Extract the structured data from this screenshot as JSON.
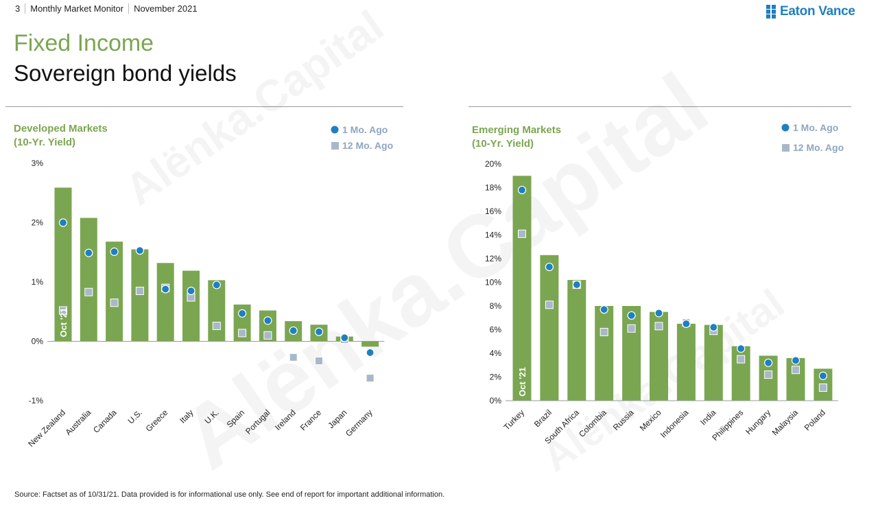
{
  "header": {
    "page_number": "3",
    "report_name": "Monthly Market Monitor",
    "date": "November 2021",
    "brand": "Eaton Vance"
  },
  "section": {
    "title": "Fixed Income",
    "subtitle": "Sovereign bond yields"
  },
  "watermark": "Alënka.Capital",
  "source": "Source: Factset as of 10/31/21. Data provided is for informational use only. See end of report for important additional information.",
  "colors": {
    "bar": "#7ba651",
    "one_month_marker": "#1f7fc0",
    "twelve_month_marker": "#a9b8c8",
    "legend_text": "#8fa6bf",
    "chart_title": "#7ba651"
  },
  "chart_data": [
    {
      "type": "bar",
      "title": "Developed Markets",
      "subtitle": "(10-Yr. Yield)",
      "categories": [
        "New Zealand",
        "Australia",
        "Canada",
        "U.S.",
        "Greece",
        "Italy",
        "U.K.",
        "Spain",
        "Portugal",
        "Ireland",
        "France",
        "Japan",
        "Germany"
      ],
      "series": [
        {
          "name": "Oct '21",
          "marker": "bar",
          "values": [
            2.59,
            2.08,
            1.68,
            1.55,
            1.32,
            1.19,
            1.03,
            0.62,
            0.52,
            0.34,
            0.28,
            0.08,
            -0.09
          ]
        },
        {
          "name": "1 Mo. Ago",
          "marker": "circle",
          "values": [
            2.0,
            1.49,
            1.51,
            1.53,
            0.88,
            0.85,
            0.95,
            0.47,
            0.35,
            0.18,
            0.16,
            0.06,
            -0.19
          ]
        },
        {
          "name": "12 Mo. Ago",
          "marker": "square",
          "values": [
            0.52,
            0.83,
            0.65,
            0.85,
            0.9,
            0.74,
            0.26,
            0.14,
            0.1,
            -0.27,
            -0.33,
            0.03,
            -0.62
          ]
        }
      ],
      "bar_label": "Oct '21",
      "ylim": [
        -1,
        3
      ],
      "yticks": [
        -1,
        0,
        1,
        2,
        3
      ],
      "ytick_labels": [
        "-1%",
        "0%",
        "1%",
        "2%",
        "3%"
      ],
      "legend": [
        "1 Mo. Ago",
        "12 Mo. Ago"
      ],
      "legend_position": "top-right"
    },
    {
      "type": "bar",
      "title": "Emerging Markets",
      "subtitle": "(10-Yr. Yield)",
      "categories": [
        "Turkey",
        "Brazil",
        "South Africa",
        "Colombia",
        "Russia",
        "Mexico",
        "Indonesia",
        "India",
        "Philippines",
        "Hungary",
        "Malaysia",
        "Poland"
      ],
      "series": [
        {
          "name": "Oct '21",
          "marker": "bar",
          "values": [
            19.0,
            12.3,
            10.2,
            8.0,
            8.0,
            7.5,
            6.5,
            6.4,
            4.6,
            3.8,
            3.6,
            2.7
          ]
        },
        {
          "name": "1 Mo. Ago",
          "marker": "circle",
          "values": [
            17.8,
            11.3,
            9.8,
            7.7,
            7.2,
            7.4,
            6.5,
            6.2,
            4.4,
            3.2,
            3.4,
            2.1
          ]
        },
        {
          "name": "12 Mo. Ago",
          "marker": "square",
          "values": [
            14.1,
            8.1,
            9.8,
            5.8,
            6.1,
            6.3,
            6.6,
            5.9,
            3.5,
            2.2,
            2.6,
            1.1
          ]
        }
      ],
      "bar_label": "Oct '21",
      "ylim": [
        0,
        20
      ],
      "yticks": [
        0,
        2,
        4,
        6,
        8,
        10,
        12,
        14,
        16,
        18,
        20
      ],
      "ytick_labels": [
        "0%",
        "2%",
        "4%",
        "6%",
        "8%",
        "10%",
        "12%",
        "14%",
        "16%",
        "18%",
        "20%"
      ],
      "legend": [
        "1 Mo. Ago",
        "12 Mo. Ago"
      ],
      "legend_position": "top-right"
    }
  ]
}
